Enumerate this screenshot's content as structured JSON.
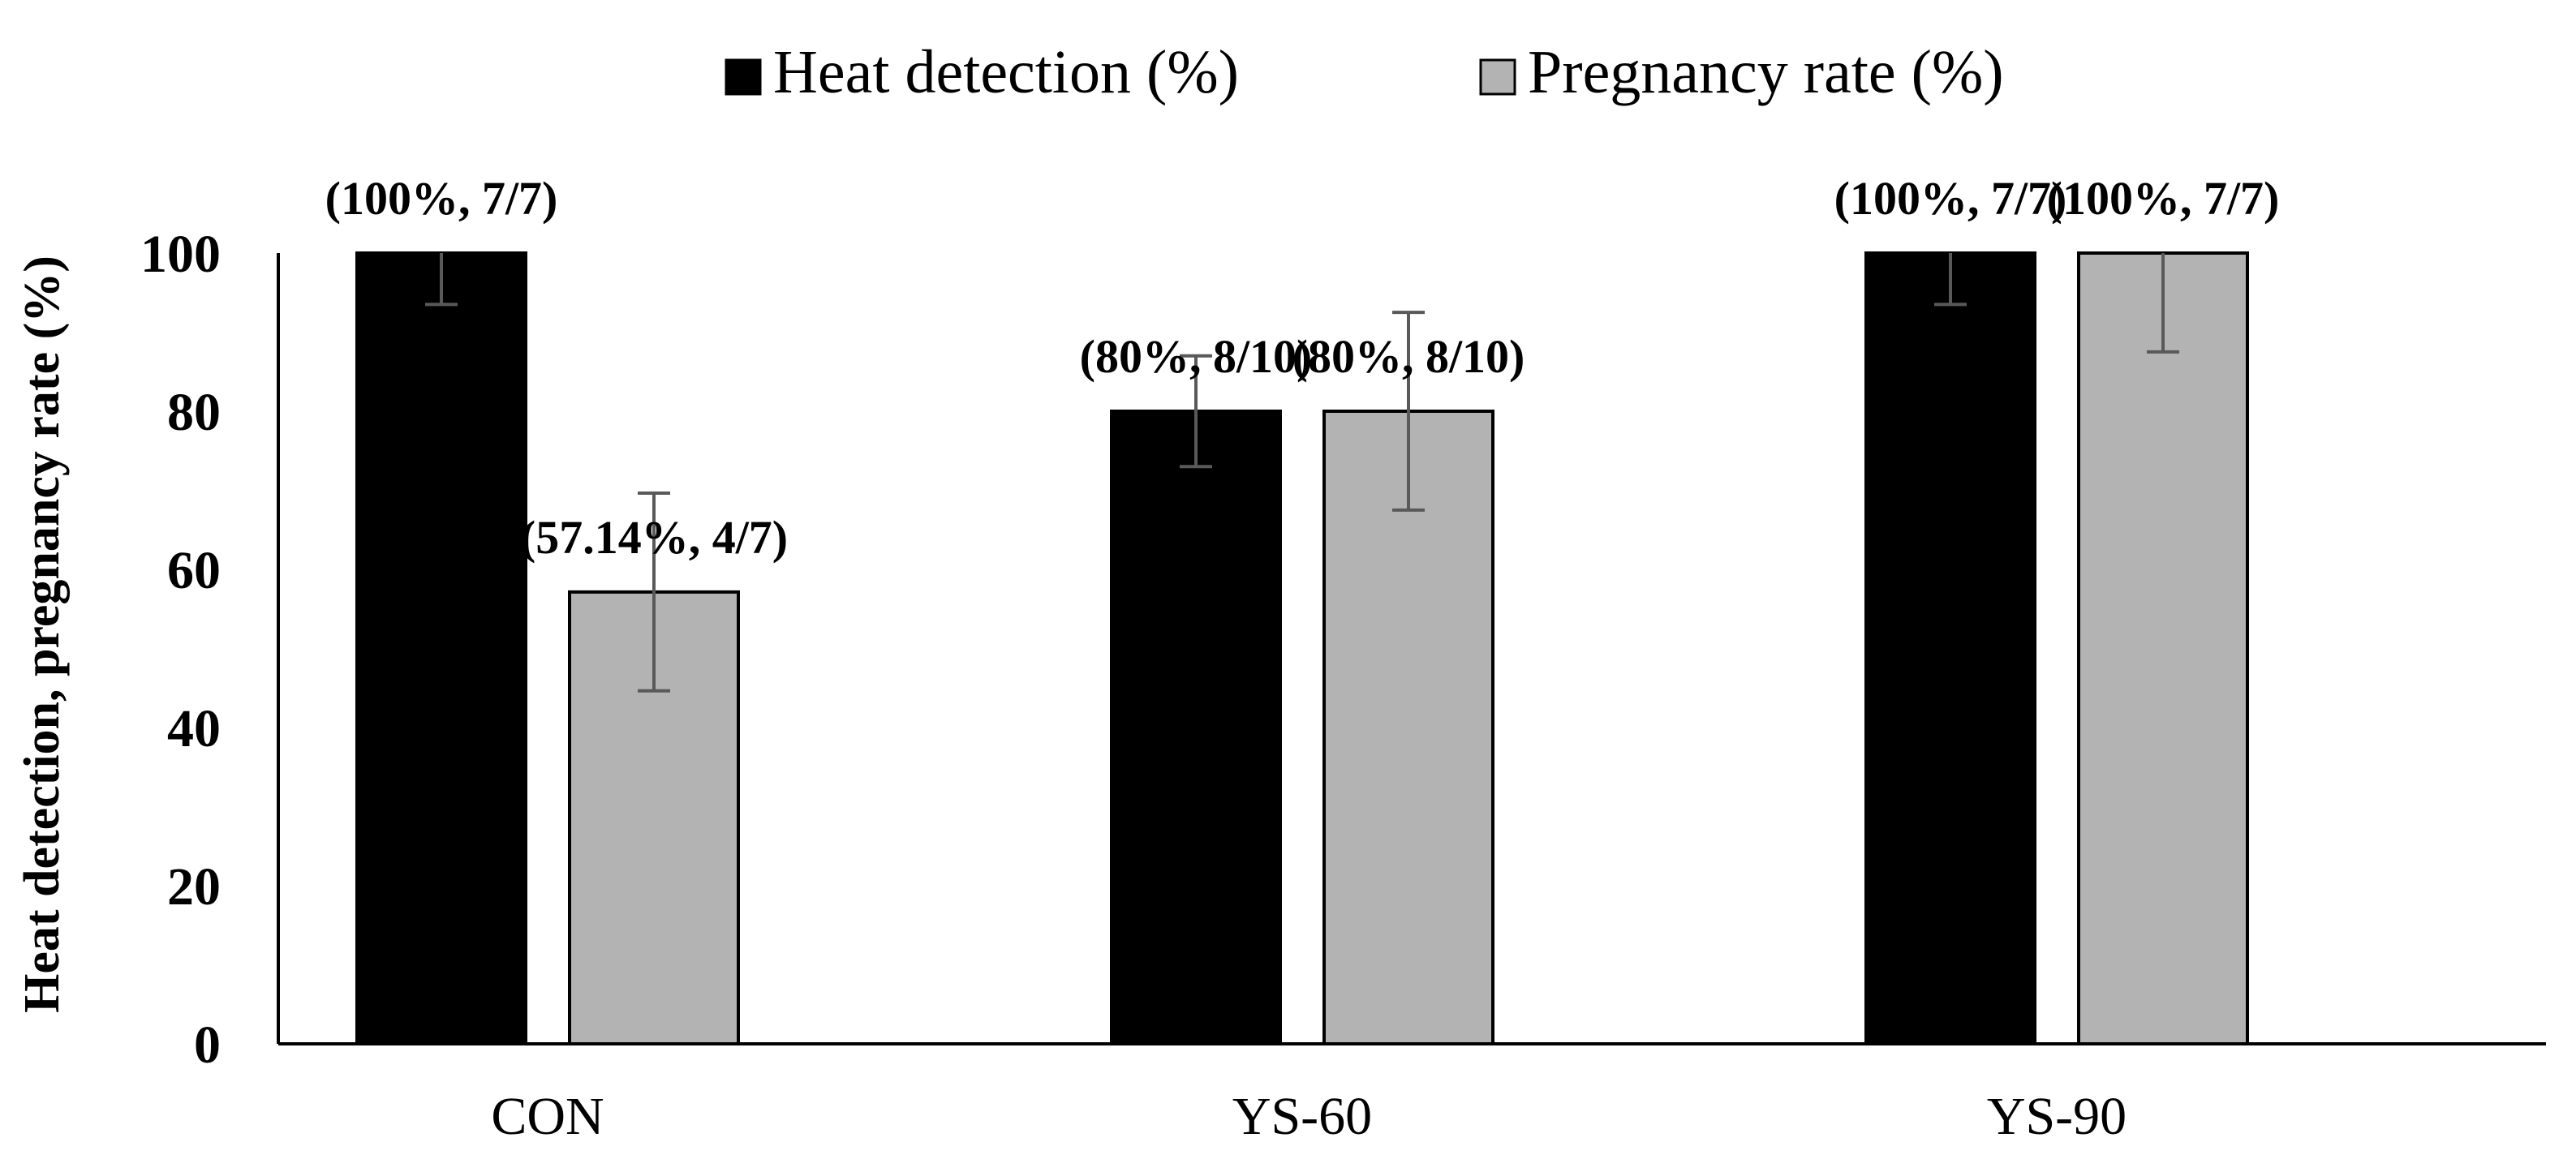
{
  "chart_data": {
    "type": "bar",
    "title": "",
    "xlabel": "",
    "ylabel": "Heat detection, pregnancy rate (%)",
    "ylim": [
      0,
      100
    ],
    "yticks": [
      "0",
      "20",
      "40",
      "60",
      "80",
      "100"
    ],
    "categories": [
      "CON",
      "YS-60",
      "YS-90"
    ],
    "legend_position": "top",
    "series": [
      {
        "name": "Heat detection (%)",
        "color": "#000000",
        "values": [
          100,
          80,
          100
        ],
        "error": [
          6.5,
          7,
          6.5
        ],
        "labels": [
          "(100%, 7/7)",
          "(80%, 8/10)",
          "(100%, 7/7)"
        ]
      },
      {
        "name": "Pregnancy rate (%)",
        "color": "#b3b3b3",
        "values": [
          57.14,
          80,
          100
        ],
        "error": [
          12.5,
          12.5,
          12.5
        ],
        "labels": [
          "(57.14%, 4/7)",
          "(80%, 8/10)",
          "(100%, 7/7)"
        ]
      }
    ]
  }
}
